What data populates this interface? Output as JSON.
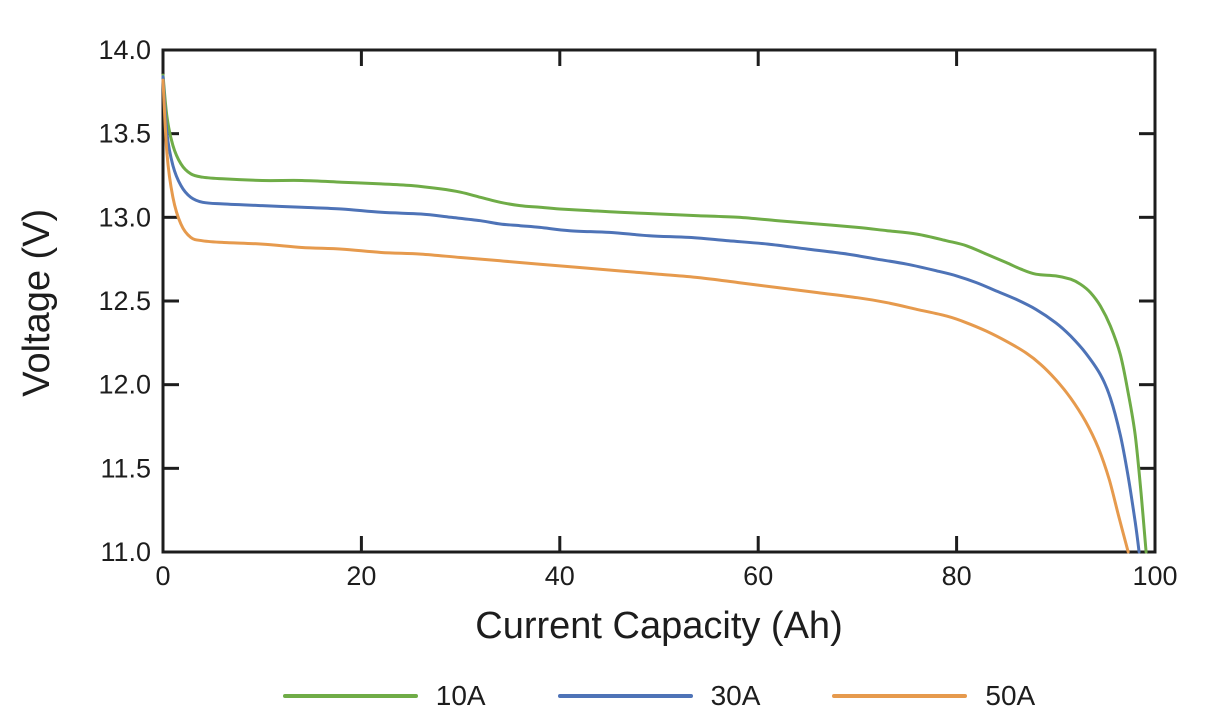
{
  "figure": {
    "background": "#ffffff",
    "axis_color": "#1d1d1d",
    "tick_label_color": "#1d1d1d"
  },
  "chart_data": {
    "type": "line",
    "title": "",
    "xlabel": "Current Capacity (Ah)",
    "ylabel": "Voltage (V)",
    "xlim": [
      0,
      100
    ],
    "ylim": [
      11.0,
      14.0
    ],
    "grid": false,
    "frame": "box",
    "tick_style": "inward-mirrored",
    "legend_position": "bottom-center",
    "x_ticks": [
      {
        "v": 0,
        "label": "0"
      },
      {
        "v": 20,
        "label": "20"
      },
      {
        "v": 40,
        "label": "40"
      },
      {
        "v": 60,
        "label": "60"
      },
      {
        "v": 80,
        "label": "80"
      },
      {
        "v": 100,
        "label": "100"
      }
    ],
    "y_ticks": [
      {
        "v": 11.0,
        "label": "11.0"
      },
      {
        "v": 11.5,
        "label": "11.5"
      },
      {
        "v": 12.0,
        "label": "12.0"
      },
      {
        "v": 12.5,
        "label": "12.5"
      },
      {
        "v": 13.0,
        "label": "13.0"
      },
      {
        "v": 13.5,
        "label": "13.5"
      },
      {
        "v": 14.0,
        "label": "14.0"
      }
    ],
    "series": [
      {
        "name": "10A",
        "color": "#6fac47",
        "points": [
          [
            0,
            13.85
          ],
          [
            0.4,
            13.6
          ],
          [
            1,
            13.43
          ],
          [
            1.8,
            13.32
          ],
          [
            2.8,
            13.26
          ],
          [
            4,
            13.24
          ],
          [
            6,
            13.23
          ],
          [
            10,
            13.22
          ],
          [
            14,
            13.22
          ],
          [
            18,
            13.21
          ],
          [
            22,
            13.2
          ],
          [
            25,
            13.19
          ],
          [
            28,
            13.17
          ],
          [
            30,
            13.15
          ],
          [
            32,
            13.12
          ],
          [
            34,
            13.09
          ],
          [
            36,
            13.07
          ],
          [
            38,
            13.06
          ],
          [
            40,
            13.05
          ],
          [
            43,
            13.04
          ],
          [
            46,
            13.03
          ],
          [
            50,
            13.02
          ],
          [
            54,
            13.01
          ],
          [
            58,
            13.0
          ],
          [
            62,
            12.98
          ],
          [
            66,
            12.96
          ],
          [
            70,
            12.94
          ],
          [
            73,
            12.92
          ],
          [
            76,
            12.9
          ],
          [
            79,
            12.86
          ],
          [
            81,
            12.83
          ],
          [
            83,
            12.78
          ],
          [
            85,
            12.73
          ],
          [
            86.5,
            12.69
          ],
          [
            88,
            12.66
          ],
          [
            90,
            12.65
          ],
          [
            91.5,
            12.63
          ],
          [
            92.5,
            12.6
          ],
          [
            93.5,
            12.55
          ],
          [
            94.5,
            12.47
          ],
          [
            95.5,
            12.35
          ],
          [
            96.5,
            12.18
          ],
          [
            97.3,
            11.95
          ],
          [
            98,
            11.7
          ],
          [
            98.6,
            11.35
          ],
          [
            99.1,
            11.0
          ]
        ]
      },
      {
        "name": "30A",
        "color": "#4e73b7",
        "points": [
          [
            0,
            13.84
          ],
          [
            0.4,
            13.5
          ],
          [
            1,
            13.31
          ],
          [
            1.8,
            13.19
          ],
          [
            2.8,
            13.12
          ],
          [
            4,
            13.09
          ],
          [
            6,
            13.08
          ],
          [
            10,
            13.07
          ],
          [
            14,
            13.06
          ],
          [
            18,
            13.05
          ],
          [
            22,
            13.03
          ],
          [
            26,
            13.02
          ],
          [
            29,
            13.0
          ],
          [
            32,
            12.98
          ],
          [
            34,
            12.96
          ],
          [
            36,
            12.95
          ],
          [
            38,
            12.94
          ],
          [
            41,
            12.92
          ],
          [
            45,
            12.91
          ],
          [
            49,
            12.89
          ],
          [
            53,
            12.88
          ],
          [
            57,
            12.86
          ],
          [
            61,
            12.84
          ],
          [
            65,
            12.81
          ],
          [
            69,
            12.78
          ],
          [
            72,
            12.75
          ],
          [
            75,
            12.72
          ],
          [
            78,
            12.68
          ],
          [
            80,
            12.65
          ],
          [
            82,
            12.61
          ],
          [
            84,
            12.56
          ],
          [
            86,
            12.51
          ],
          [
            88,
            12.45
          ],
          [
            90,
            12.37
          ],
          [
            91.5,
            12.29
          ],
          [
            93,
            12.19
          ],
          [
            94.5,
            12.06
          ],
          [
            95.5,
            11.92
          ],
          [
            96.5,
            11.7
          ],
          [
            97.3,
            11.45
          ],
          [
            98,
            11.18
          ],
          [
            98.4,
            11.0
          ]
        ]
      },
      {
        "name": "50A",
        "color": "#e69a4d",
        "points": [
          [
            0,
            13.82
          ],
          [
            0.4,
            13.38
          ],
          [
            1,
            13.12
          ],
          [
            1.8,
            12.96
          ],
          [
            2.8,
            12.88
          ],
          [
            4,
            12.86
          ],
          [
            6,
            12.85
          ],
          [
            10,
            12.84
          ],
          [
            14,
            12.82
          ],
          [
            18,
            12.81
          ],
          [
            22,
            12.79
          ],
          [
            26,
            12.78
          ],
          [
            30,
            12.76
          ],
          [
            34,
            12.74
          ],
          [
            38,
            12.72
          ],
          [
            42,
            12.7
          ],
          [
            46,
            12.68
          ],
          [
            50,
            12.66
          ],
          [
            54,
            12.64
          ],
          [
            58,
            12.61
          ],
          [
            62,
            12.58
          ],
          [
            66,
            12.55
          ],
          [
            70,
            12.52
          ],
          [
            73,
            12.49
          ],
          [
            76,
            12.45
          ],
          [
            79,
            12.41
          ],
          [
            81,
            12.37
          ],
          [
            83,
            12.32
          ],
          [
            85,
            12.26
          ],
          [
            87,
            12.19
          ],
          [
            88.5,
            12.12
          ],
          [
            90,
            12.03
          ],
          [
            91.5,
            11.92
          ],
          [
            93,
            11.78
          ],
          [
            94.3,
            11.62
          ],
          [
            95.4,
            11.43
          ],
          [
            96.4,
            11.2
          ],
          [
            97.3,
            11.0
          ]
        ]
      }
    ]
  }
}
